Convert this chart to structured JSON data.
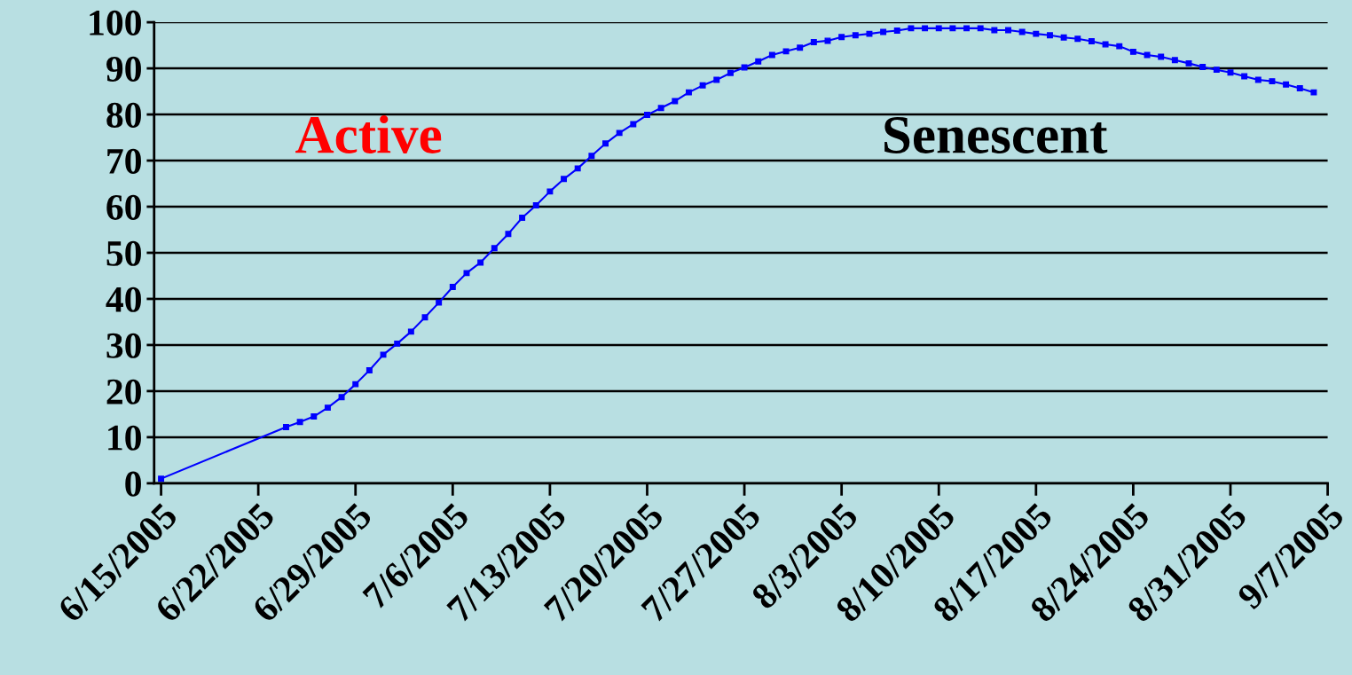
{
  "chart_data": {
    "type": "line",
    "x": [
      "2005-06-15",
      "2005-06-24",
      "2005-06-25",
      "2005-06-26",
      "2005-06-27",
      "2005-06-28",
      "2005-06-29",
      "2005-06-30",
      "2005-07-01",
      "2005-07-02",
      "2005-07-03",
      "2005-07-04",
      "2005-07-05",
      "2005-07-06",
      "2005-07-07",
      "2005-07-08",
      "2005-07-09",
      "2005-07-10",
      "2005-07-11",
      "2005-07-12",
      "2005-07-13",
      "2005-07-14",
      "2005-07-15",
      "2005-07-16",
      "2005-07-17",
      "2005-07-18",
      "2005-07-19",
      "2005-07-20",
      "2005-07-21",
      "2005-07-22",
      "2005-07-23",
      "2005-07-24",
      "2005-07-25",
      "2005-07-26",
      "2005-07-27",
      "2005-07-28",
      "2005-07-29",
      "2005-07-30",
      "2005-07-31",
      "2005-08-01",
      "2005-08-02",
      "2005-08-03",
      "2005-08-04",
      "2005-08-05",
      "2005-08-06",
      "2005-08-07",
      "2005-08-08",
      "2005-08-09",
      "2005-08-10",
      "2005-08-11",
      "2005-08-12",
      "2005-08-13",
      "2005-08-14",
      "2005-08-15",
      "2005-08-16",
      "2005-08-17",
      "2005-08-18",
      "2005-08-19",
      "2005-08-20",
      "2005-08-21",
      "2005-08-22",
      "2005-08-23",
      "2005-08-24",
      "2005-08-25",
      "2005-08-26",
      "2005-08-27",
      "2005-08-28",
      "2005-08-29",
      "2005-08-30",
      "2005-08-31",
      "2005-09-01",
      "2005-09-02",
      "2005-09-03",
      "2005-09-04",
      "2005-09-05",
      "2005-09-06"
    ],
    "series": [
      {
        "color": "#0000ff",
        "values": [
          1.0,
          12.2,
          13.3,
          14.5,
          16.4,
          18.7,
          21.5,
          24.5,
          27.9,
          30.3,
          32.9,
          36.0,
          39.2,
          42.6,
          45.6,
          47.9,
          51.0,
          54.1,
          57.6,
          60.3,
          63.3,
          66.0,
          68.3,
          71.0,
          73.7,
          76.0,
          77.9,
          79.9,
          81.4,
          82.9,
          84.8,
          86.3,
          87.5,
          89.0,
          90.2,
          91.5,
          92.9,
          93.7,
          94.5,
          95.7,
          96.0,
          96.8,
          97.2,
          97.5,
          97.9,
          98.2,
          98.7,
          98.7,
          98.7,
          98.7,
          98.7,
          98.7,
          98.3,
          98.3,
          97.9,
          97.5,
          97.2,
          96.7,
          96.4,
          95.9,
          95.2,
          94.8,
          93.6,
          92.9,
          92.5,
          91.8,
          91.1,
          90.3,
          89.7,
          89.1,
          88.3,
          87.5,
          87.2,
          86.5,
          85.7,
          84.8
        ]
      }
    ],
    "xlim": [
      "2005-06-14T12:00",
      "2005-09-07T00:00"
    ],
    "xticks": [
      {
        "value": "2005-06-15",
        "label": "6/15/2005"
      },
      {
        "value": "2005-06-22",
        "label": "6/22/2005"
      },
      {
        "value": "2005-06-29",
        "label": "6/29/2005"
      },
      {
        "value": "2005-07-06",
        "label": "7/6/2005"
      },
      {
        "value": "2005-07-13",
        "label": "7/13/2005"
      },
      {
        "value": "2005-07-20",
        "label": "7/20/2005"
      },
      {
        "value": "2005-07-27",
        "label": "7/27/2005"
      },
      {
        "value": "2005-08-03",
        "label": "8/3/2005"
      },
      {
        "value": "2005-08-10",
        "label": "8/10/2005"
      },
      {
        "value": "2005-08-17",
        "label": "8/17/2005"
      },
      {
        "value": "2005-08-24",
        "label": "8/24/2005"
      },
      {
        "value": "2005-08-31",
        "label": "8/31/2005"
      },
      {
        "value": "2005-09-07",
        "label": "9/7/2005"
      }
    ],
    "ylim": [
      0,
      100
    ],
    "yticks": [
      0,
      10,
      20,
      30,
      40,
      50,
      60,
      70,
      80,
      90,
      100
    ],
    "annotations": [
      "Active",
      "Senescent"
    ],
    "grid": "y",
    "marker": "square",
    "line_style": "solid"
  }
}
